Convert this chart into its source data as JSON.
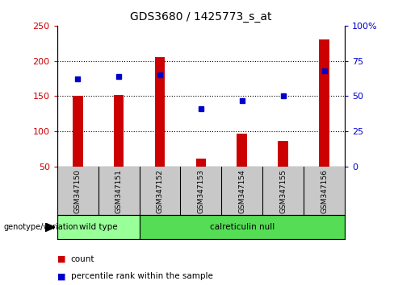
{
  "title": "GDS3680 / 1425773_s_at",
  "samples": [
    "GSM347150",
    "GSM347151",
    "GSM347152",
    "GSM347153",
    "GSM347154",
    "GSM347155",
    "GSM347156"
  ],
  "counts": [
    150,
    152,
    205,
    62,
    97,
    87,
    230
  ],
  "percentiles": [
    62,
    64,
    65,
    41,
    47,
    50,
    68
  ],
  "y_min": 50,
  "y_max": 250,
  "y_ticks": [
    50,
    100,
    150,
    200,
    250
  ],
  "right_y_ticks": [
    0,
    25,
    50,
    75,
    100
  ],
  "right_y_tick_labels": [
    "0",
    "25",
    "50",
    "75",
    "100%"
  ],
  "bar_color": "#CC0000",
  "dot_color": "#0000CC",
  "groups": [
    {
      "label": "wild type",
      "start": 0,
      "end": 2,
      "color": "#99FF99"
    },
    {
      "label": "calreticulin null",
      "start": 2,
      "end": 7,
      "color": "#55DD55"
    }
  ],
  "genotype_label": "genotype/variation",
  "legend_count_label": "count",
  "legend_percentile_label": "percentile rank within the sample",
  "title_fontsize": 10,
  "tick_fontsize": 8,
  "sample_bg_color": "#C8C8C8",
  "grid_color": "#000000",
  "fig_bg_color": "#FFFFFF",
  "bar_width": 0.25
}
